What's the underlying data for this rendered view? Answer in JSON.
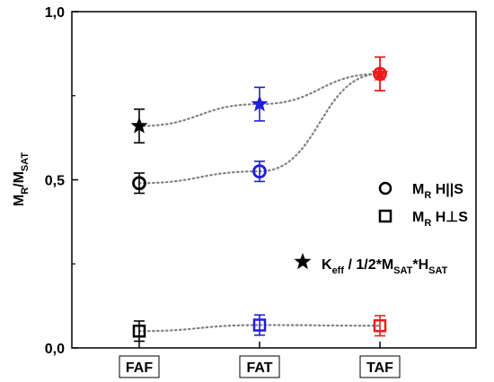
{
  "chart_data": {
    "type": "scatter",
    "categories": [
      "FAF",
      "FAT",
      "TAF"
    ],
    "ylim": [
      0,
      1
    ],
    "yticks": [
      {
        "value": 0.0,
        "label": "0,0"
      },
      {
        "value": 0.5,
        "label": "0,5"
      },
      {
        "value": 1.0,
        "label": "1,0"
      }
    ],
    "ylabel": {
      "main": "M",
      "sub1": "R",
      "slash": "/M",
      "sub2": "SAT"
    },
    "grid": false,
    "category_colors": [
      "#000000",
      "#1f1fd6",
      "#ee1c1c"
    ],
    "series": [
      {
        "marker": "circle",
        "legend": {
          "main": "M",
          "sub": "R",
          "rest": " H||S"
        },
        "values": [
          0.49,
          0.525,
          0.815
        ],
        "errors": [
          0.03,
          0.03,
          0.05
        ]
      },
      {
        "marker": "square",
        "legend": {
          "main": "M",
          "sub": "R",
          "rest": " H⊥S"
        },
        "values": [
          0.05,
          0.068,
          0.066
        ],
        "errors": [
          0.03,
          0.03,
          0.03
        ]
      },
      {
        "marker": "star",
        "legend": {
          "main": "K",
          "sub": "eff",
          "mid": " / 1/2*M",
          "sub2": "SAT",
          "mid2": "*H",
          "sub3": "SAT"
        },
        "values": [
          0.66,
          0.725,
          0.815
        ],
        "errors": [
          0.05,
          0.05,
          0.05
        ]
      }
    ]
  }
}
